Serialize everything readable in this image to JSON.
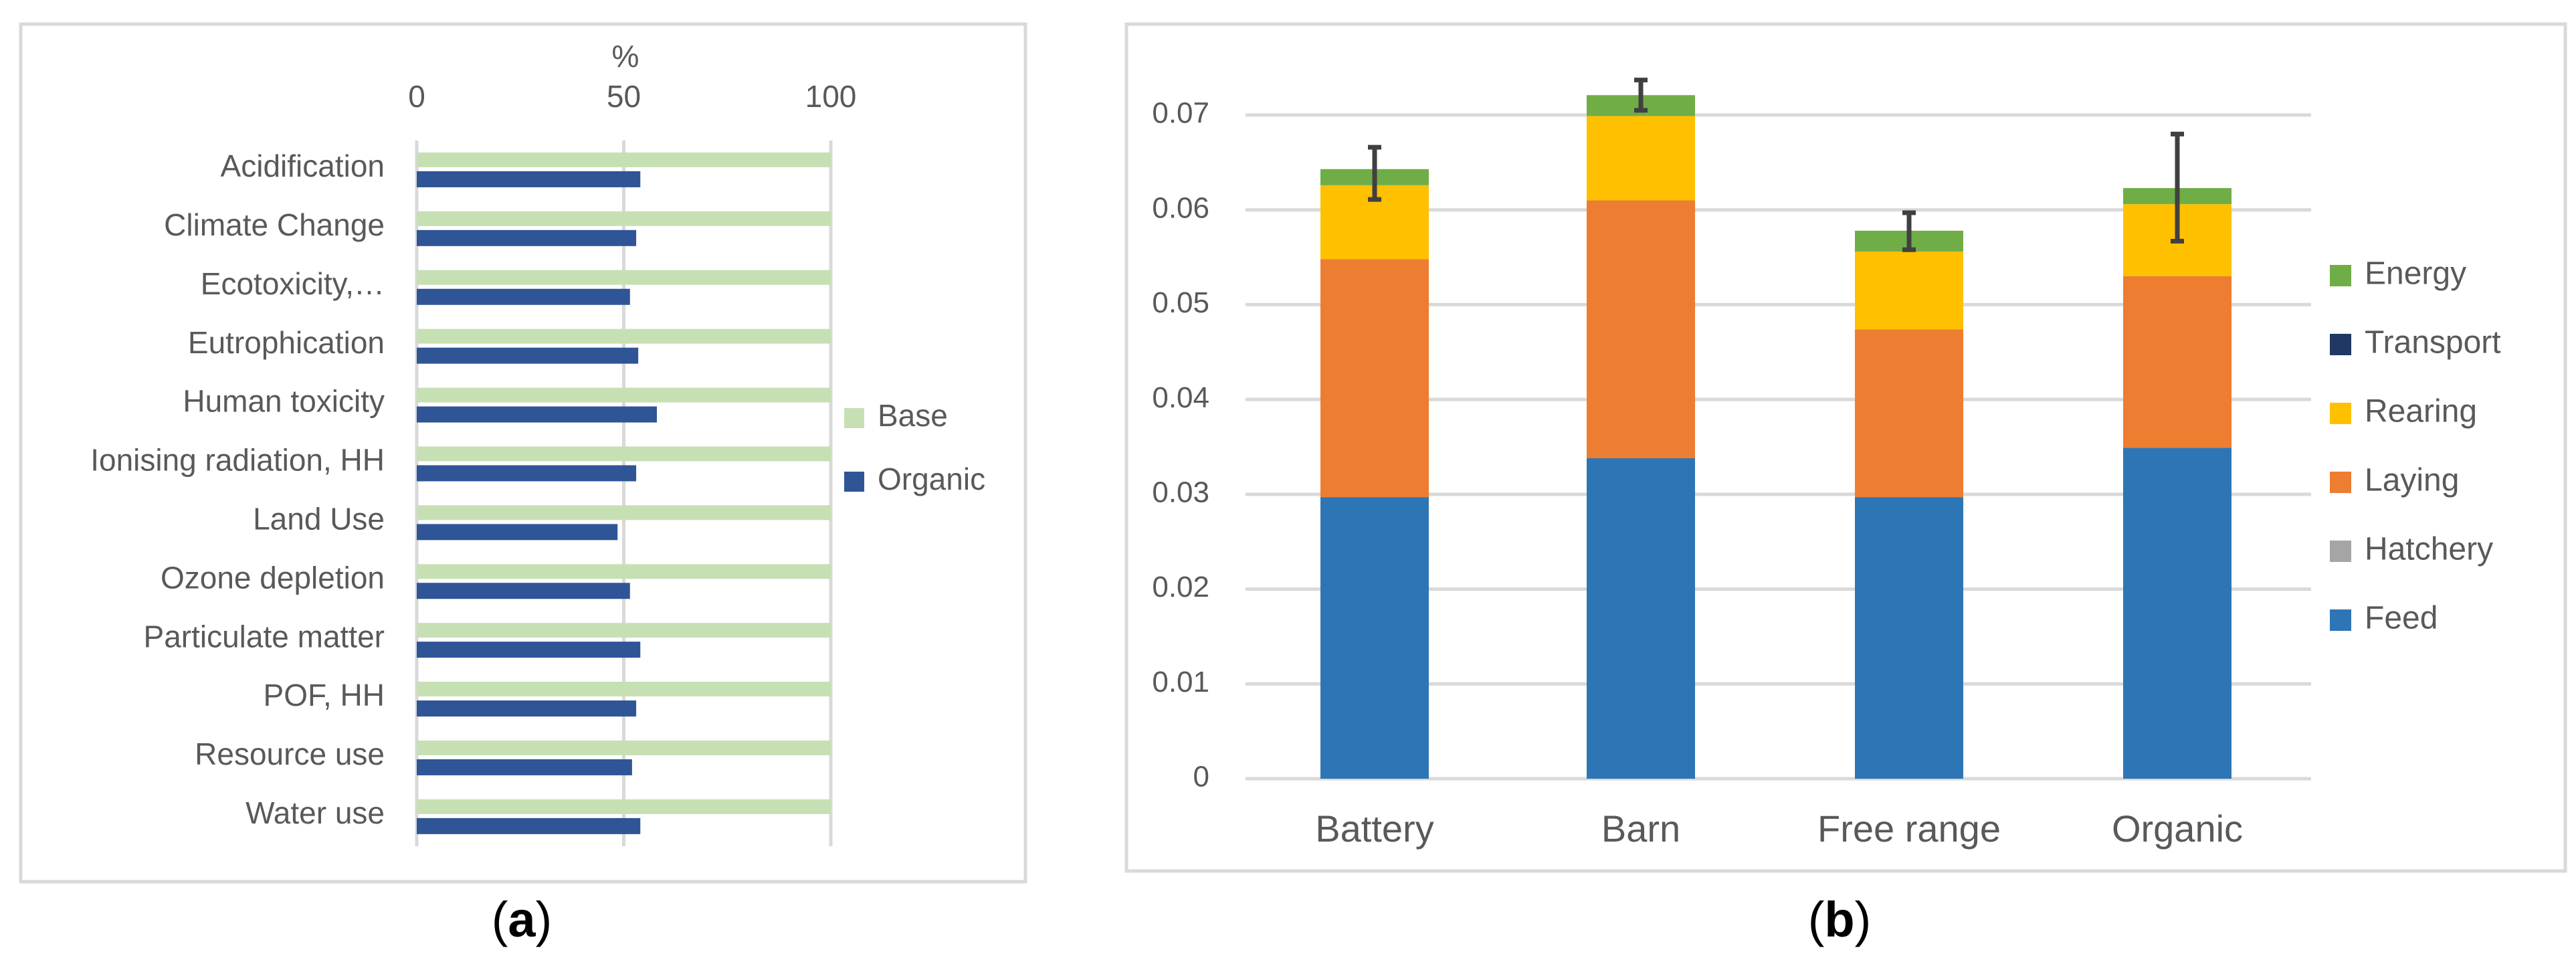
{
  "panel_a": {
    "caption": "(a)",
    "caption_open": "(",
    "caption_letter": "a",
    "caption_close": ")",
    "chart_data": {
      "type": "bar",
      "orientation": "horizontal",
      "title": "",
      "xlabel": "%",
      "ylabel": "",
      "xlim": [
        0,
        100
      ],
      "xticks": [
        0,
        50,
        100
      ],
      "grid": true,
      "legend_position": "right",
      "categories": [
        "Acidification",
        "Climate Change",
        "Ecotoxicity,…",
        "Eutrophication",
        "Human toxicity",
        "Ionising radiation, HH",
        "Land Use",
        "Ozone depletion",
        "Particulate matter",
        "POF, HH",
        "Resource use",
        "Water use"
      ],
      "series": [
        {
          "name": "Base",
          "color": "#c6e0b4",
          "values": [
            100,
            100,
            100,
            100,
            100,
            100,
            100,
            100,
            100,
            100,
            100,
            100
          ]
        },
        {
          "name": "Organic",
          "color": "#2f5597",
          "values": [
            54,
            53,
            51.5,
            53.5,
            58,
            53,
            48.5,
            51.5,
            54,
            53,
            52,
            54
          ]
        }
      ]
    }
  },
  "panel_b": {
    "caption": "(b)",
    "caption_open": "(",
    "caption_letter": "b",
    "caption_close": ")",
    "chart_data": {
      "type": "bar",
      "stacked": true,
      "title": "",
      "xlabel": "",
      "ylabel": "",
      "ylim": [
        0,
        0.07
      ],
      "yticks": [
        "0",
        "0.01",
        "0.02",
        "0.03",
        "0.04",
        "0.05",
        "0.06",
        "0.07"
      ],
      "yticks_values": [
        0,
        0.01,
        0.02,
        0.03,
        0.04,
        0.05,
        0.06,
        0.07
      ],
      "grid": true,
      "legend_position": "right",
      "categories": [
        "Battery",
        "Barn",
        "Free range",
        "Organic"
      ],
      "series": [
        {
          "name": "Feed",
          "color": "#2e75b6",
          "values": [
            0.0297,
            0.0338,
            0.0297,
            0.0349
          ]
        },
        {
          "name": "Hatchery",
          "color": "#a5a5a5",
          "values": [
            0.0,
            0.0,
            0.0,
            0.0
          ]
        },
        {
          "name": "Laying",
          "color": "#ed7d31",
          "values": [
            0.0251,
            0.0272,
            0.0177,
            0.0181
          ]
        },
        {
          "name": "Rearing",
          "color": "#ffc000",
          "values": [
            0.0078,
            0.0089,
            0.0082,
            0.0076
          ]
        },
        {
          "name": "Transport",
          "color": "#1f3864",
          "values": [
            0.0,
            0.0,
            0.0,
            0.0
          ]
        },
        {
          "name": "Energy",
          "color": "#70ad47",
          "values": [
            0.0017,
            0.0022,
            0.0022,
            0.0017
          ]
        }
      ],
      "error_bars": {
        "color": "#404040",
        "low": [
          0.0611,
          0.0705,
          0.0558,
          0.0567
        ],
        "high": [
          0.0666,
          0.0737,
          0.0597,
          0.068
        ]
      },
      "legend_order": [
        "Energy",
        "Transport",
        "Rearing",
        "Laying",
        "Hatchery",
        "Feed"
      ]
    }
  }
}
